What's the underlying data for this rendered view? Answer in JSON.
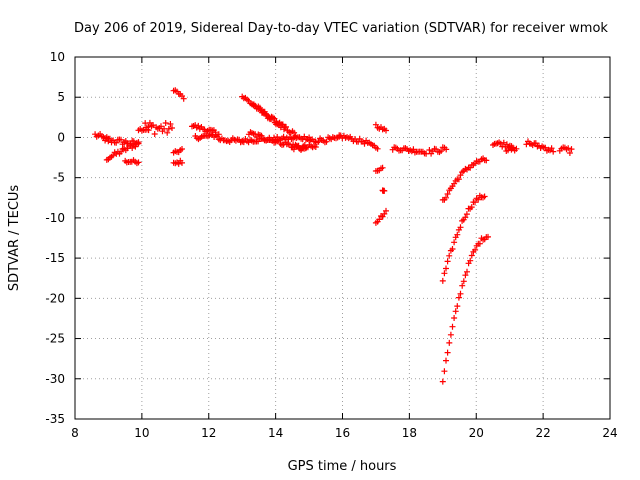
{
  "chart_data": {
    "type": "scatter",
    "title": "Day 206 of 2019, Sidereal Day-to-day VTEC variation (SDTVAR) for receiver wmok",
    "xlabel": "GPS time / hours",
    "ylabel": "SDTVAR / TECUs",
    "xlim": [
      8,
      24
    ],
    "ylim": [
      -35,
      10
    ],
    "xticks": [
      "8",
      "10",
      "12",
      "14",
      "16",
      "18",
      "20",
      "22",
      "24"
    ],
    "yticks": [
      "10",
      "5",
      "0",
      "-5",
      "-10",
      "-15",
      "-20",
      "-25",
      "-30",
      "-35"
    ],
    "grid": true,
    "marker": "plus",
    "color": "#ff0000",
    "segments": [
      {
        "x0": 8.6,
        "x1": 9.0,
        "y0": 0.3,
        "y1": -0.3,
        "w": 0.7
      },
      {
        "x0": 8.9,
        "x1": 9.9,
        "y0": -0.3,
        "y1": -0.8,
        "w": 0.7
      },
      {
        "x0": 8.95,
        "x1": 9.9,
        "y0": -2.6,
        "y1": -0.7,
        "w": 0.6
      },
      {
        "x0": 9.5,
        "x1": 9.9,
        "y0": -3.0,
        "y1": -3.0,
        "w": 0.4
      },
      {
        "x0": 9.9,
        "x1": 10.2,
        "y0": 1.0,
        "y1": 1.0,
        "w": 0.3
      },
      {
        "x0": 10.1,
        "x1": 10.9,
        "y0": 1.3,
        "y1": 1.0,
        "w": 1.6
      },
      {
        "x0": 10.95,
        "x1": 11.25,
        "y0": 6.0,
        "y1": 4.9,
        "w": 0.4
      },
      {
        "x0": 10.95,
        "x1": 11.2,
        "y0": -2.0,
        "y1": -1.5,
        "w": 0.4
      },
      {
        "x0": 10.95,
        "x1": 11.2,
        "y0": -3.3,
        "y1": -3.0,
        "w": 0.4
      },
      {
        "x0": 11.5,
        "x1": 12.2,
        "y0": 1.5,
        "y1": 0.6,
        "w": 0.5
      },
      {
        "x0": 11.6,
        "x1": 12.3,
        "y0": 0.0,
        "y1": 0.3,
        "w": 0.5
      },
      {
        "x0": 12.3,
        "x1": 13.0,
        "y0": -0.2,
        "y1": -0.5,
        "w": 0.6
      },
      {
        "x0": 13.0,
        "x1": 15.0,
        "y0": -0.4,
        "y1": 0.0,
        "w": 0.5
      },
      {
        "x0": 13.0,
        "x1": 14.3,
        "y0": 5.1,
        "y1": 1.0,
        "w": 0.6
      },
      {
        "x0": 13.3,
        "x1": 14.6,
        "y0": 4.0,
        "y1": 0.3,
        "w": 0.5
      },
      {
        "x0": 13.2,
        "x1": 14.9,
        "y0": 0.5,
        "y1": -1.5,
        "w": 0.6
      },
      {
        "x0": 14.5,
        "x1": 15.2,
        "y0": -1.2,
        "y1": -1.2,
        "w": 0.6
      },
      {
        "x0": 15.0,
        "x1": 15.9,
        "y0": -0.4,
        "y1": -0.2,
        "w": 0.6
      },
      {
        "x0": 15.9,
        "x1": 16.8,
        "y0": 0.2,
        "y1": -0.7,
        "w": 0.5
      },
      {
        "x0": 16.85,
        "x1": 17.05,
        "y0": -1.0,
        "y1": -1.3,
        "w": 0.4
      },
      {
        "x0": 17.0,
        "x1": 17.3,
        "y0": 1.5,
        "y1": 0.8,
        "w": 0.4
      },
      {
        "x0": 17.0,
        "x1": 17.2,
        "y0": -4.1,
        "y1": -3.8,
        "w": 0.3
      },
      {
        "x0": 17.2,
        "x1": 17.25,
        "y0": -6.6,
        "y1": -6.6,
        "w": 0.1
      },
      {
        "x0": 17.0,
        "x1": 17.3,
        "y0": -10.5,
        "y1": -9.3,
        "w": 0.4
      },
      {
        "x0": 17.5,
        "x1": 18.5,
        "y0": -1.3,
        "y1": -1.8,
        "w": 0.5
      },
      {
        "x0": 18.6,
        "x1": 19.1,
        "y0": -1.8,
        "y1": -1.4,
        "w": 0.6
      },
      {
        "x0": 19.0,
        "x1": 20.3,
        "y0": -8.0,
        "y1": -2.8,
        "w": 0.5,
        "curve": 0.6
      },
      {
        "x0": 19.0,
        "x1": 20.25,
        "y0": -17.8,
        "y1": -7.3,
        "w": 0.5,
        "curve": 0.6
      },
      {
        "x0": 19.0,
        "x1": 20.35,
        "y0": -30.2,
        "y1": -12.3,
        "w": 0.5,
        "curve": 0.6
      },
      {
        "x0": 20.5,
        "x1": 21.1,
        "y0": -0.7,
        "y1": -1.0,
        "w": 0.6
      },
      {
        "x0": 20.9,
        "x1": 21.2,
        "y0": -1.5,
        "y1": -1.6,
        "w": 0.5
      },
      {
        "x0": 21.5,
        "x1": 22.3,
        "y0": -0.6,
        "y1": -1.6,
        "w": 0.6
      },
      {
        "x0": 22.5,
        "x1": 22.85,
        "y0": -1.4,
        "y1": -1.7,
        "w": 0.8
      }
    ]
  }
}
